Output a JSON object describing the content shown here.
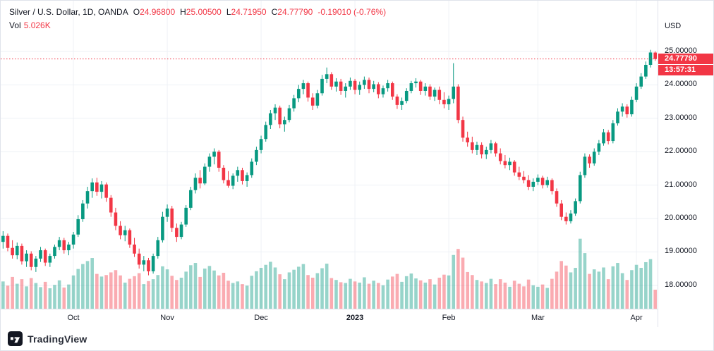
{
  "header": {
    "title": "Silver / U.S. Dollar, 1D, OANDA",
    "ohlc": [
      {
        "k": "O",
        "v": "24.96800"
      },
      {
        "k": "H",
        "v": "25.00500"
      },
      {
        "k": "L",
        "v": "24.71950"
      },
      {
        "k": "C",
        "v": "24.77790"
      }
    ],
    "change": "-0.19010 (-0.76%)",
    "vol_label": "Vol",
    "vol_value": "5.026K"
  },
  "axes": {
    "currency_label": "USD",
    "price_ticks": [
      {
        "price": 25,
        "label": "25.00000"
      },
      {
        "price": 24,
        "label": "24.00000"
      },
      {
        "price": 23,
        "label": "23.00000"
      },
      {
        "price": 22,
        "label": "22.00000"
      },
      {
        "price": 21,
        "label": "21.00000"
      },
      {
        "price": 20,
        "label": "20.00000"
      },
      {
        "price": 19,
        "label": "19.00000"
      },
      {
        "price": 18,
        "label": "18.00000"
      }
    ],
    "time_ticks": [
      {
        "index": 15,
        "label": "Oct",
        "year": false
      },
      {
        "index": 35,
        "label": "Nov",
        "year": false
      },
      {
        "index": 55,
        "label": "Dec",
        "year": false
      },
      {
        "index": 75,
        "label": "2023",
        "year": true
      },
      {
        "index": 95,
        "label": "Feb",
        "year": false
      },
      {
        "index": 114,
        "label": "Mar",
        "year": false
      },
      {
        "index": 135,
        "label": "Apr",
        "year": false
      }
    ]
  },
  "price_tag": {
    "value": "24.77790",
    "countdown": "13:57:31"
  },
  "logo": {
    "text": "TradingView"
  },
  "colors": {
    "up": "#089981",
    "down": "#f23645",
    "volume_up": "rgba(8,153,129,0.42)",
    "volume_down": "rgba(242,54,69,0.42)",
    "grid": "#eef1f6",
    "accent_red": "#f23645",
    "text": "#131722"
  },
  "chart_data": {
    "type": "candlestick+volume",
    "title": "Silver / U.S. Dollar, 1D, OANDA",
    "symbol": "Silver / U.S. Dollar",
    "interval": "1D",
    "exchange": "OANDA",
    "ylim": [
      17.3,
      26.52
    ],
    "price_gridlines": [
      18,
      19,
      20,
      21,
      22,
      23,
      24,
      25
    ],
    "volume_max": 19,
    "last": {
      "open": 24.968,
      "high": 25.005,
      "low": 24.7195,
      "close": 24.7779,
      "change": -0.1901,
      "change_pct": -0.76,
      "volume_k": 5.026
    },
    "candles_format": [
      "open",
      "high",
      "low",
      "close",
      "volume_k"
    ],
    "candles": [
      [
        19.3,
        19.62,
        19.1,
        19.48,
        7.2
      ],
      [
        19.48,
        19.55,
        19.02,
        19.12,
        6.1
      ],
      [
        19.12,
        19.35,
        18.8,
        18.9,
        8.4
      ],
      [
        18.9,
        19.28,
        18.78,
        19.18,
        6.6
      ],
      [
        19.18,
        19.25,
        18.62,
        18.72,
        7.8
      ],
      [
        18.72,
        19.05,
        18.55,
        18.95,
        5.9
      ],
      [
        18.95,
        19.02,
        18.45,
        18.55,
        8.1
      ],
      [
        18.55,
        18.88,
        18.4,
        18.8,
        6.8
      ],
      [
        18.8,
        19.15,
        18.7,
        19.05,
        5.7
      ],
      [
        19.05,
        19.1,
        18.58,
        18.68,
        7.1
      ],
      [
        18.68,
        18.95,
        18.55,
        18.88,
        5.4
      ],
      [
        18.88,
        19.22,
        18.8,
        19.15,
        6.3
      ],
      [
        19.15,
        19.45,
        19.05,
        19.35,
        7.5
      ],
      [
        19.35,
        19.42,
        18.95,
        19.05,
        5.6
      ],
      [
        19.05,
        19.3,
        18.9,
        19.22,
        6.4
      ],
      [
        19.22,
        19.6,
        19.1,
        19.52,
        8.8
      ],
      [
        19.52,
        20.1,
        19.45,
        19.98,
        10.5
      ],
      [
        19.98,
        20.55,
        19.9,
        20.45,
        11.8
      ],
      [
        20.45,
        20.95,
        20.3,
        20.82,
        12.6
      ],
      [
        20.82,
        21.2,
        20.62,
        21.08,
        13.4
      ],
      [
        21.08,
        21.22,
        20.68,
        20.8,
        9.2
      ],
      [
        20.8,
        21.12,
        20.6,
        21.02,
        8.5
      ],
      [
        21.02,
        21.08,
        20.5,
        20.62,
        8.9
      ],
      [
        20.62,
        20.7,
        20.05,
        20.18,
        9.6
      ],
      [
        20.18,
        20.32,
        19.65,
        19.78,
        10.2
      ],
      [
        19.78,
        19.92,
        19.38,
        19.5,
        8.8
      ],
      [
        19.5,
        19.78,
        19.32,
        19.65,
        6.9
      ],
      [
        19.65,
        19.7,
        19.12,
        19.22,
        7.9
      ],
      [
        19.22,
        19.42,
        18.85,
        18.95,
        8.6
      ],
      [
        18.95,
        19.1,
        18.5,
        18.62,
        9.4
      ],
      [
        18.62,
        18.88,
        18.42,
        18.75,
        6.5
      ],
      [
        18.75,
        18.82,
        18.3,
        18.42,
        7.3
      ],
      [
        18.42,
        18.95,
        18.35,
        18.88,
        7.8
      ],
      [
        18.88,
        19.45,
        18.8,
        19.35,
        8.9
      ],
      [
        19.35,
        20.2,
        19.28,
        20.05,
        11.2
      ],
      [
        20.05,
        20.42,
        19.9,
        20.3,
        10.4
      ],
      [
        20.3,
        20.38,
        19.6,
        19.72,
        8.7
      ],
      [
        19.72,
        19.85,
        19.3,
        19.45,
        7.6
      ],
      [
        19.45,
        19.9,
        19.38,
        19.82,
        8.2
      ],
      [
        19.82,
        20.4,
        19.75,
        20.32,
        9.8
      ],
      [
        20.32,
        20.95,
        20.25,
        20.85,
        11.5
      ],
      [
        20.85,
        21.35,
        20.75,
        21.22,
        12.1
      ],
      [
        21.22,
        21.45,
        20.9,
        21.05,
        8.4
      ],
      [
        21.05,
        21.65,
        21.0,
        21.55,
        10.6
      ],
      [
        21.55,
        21.95,
        21.4,
        21.85,
        11.3
      ],
      [
        21.85,
        22.1,
        21.62,
        22.0,
        10.1
      ],
      [
        22.0,
        22.05,
        21.4,
        21.52,
        8.8
      ],
      [
        21.52,
        21.6,
        21.05,
        21.15,
        9.5
      ],
      [
        21.15,
        21.42,
        20.92,
        20.98,
        7.4
      ],
      [
        20.98,
        21.35,
        20.88,
        21.28,
        6.8
      ],
      [
        21.28,
        21.55,
        21.1,
        21.45,
        7.2
      ],
      [
        21.45,
        21.52,
        21.02,
        21.12,
        6.5
      ],
      [
        21.12,
        21.38,
        20.95,
        21.3,
        6.1
      ],
      [
        21.3,
        21.8,
        21.22,
        21.7,
        8.7
      ],
      [
        21.7,
        22.15,
        21.6,
        22.05,
        9.9
      ],
      [
        22.05,
        22.48,
        21.95,
        22.38,
        10.8
      ],
      [
        22.38,
        22.9,
        22.3,
        22.8,
        11.6
      ],
      [
        22.8,
        23.25,
        22.68,
        23.15,
        12.4
      ],
      [
        23.15,
        23.42,
        22.95,
        23.32,
        10.9
      ],
      [
        23.32,
        23.38,
        22.7,
        22.82,
        9.1
      ],
      [
        22.82,
        23.05,
        22.6,
        22.95,
        7.8
      ],
      [
        22.95,
        23.4,
        22.88,
        23.3,
        9.6
      ],
      [
        23.3,
        23.7,
        23.2,
        23.6,
        10.3
      ],
      [
        23.6,
        24.0,
        23.48,
        23.88,
        11.1
      ],
      [
        23.88,
        24.15,
        23.72,
        24.05,
        11.8
      ],
      [
        24.05,
        24.1,
        23.5,
        23.62,
        8.9
      ],
      [
        23.62,
        23.75,
        23.25,
        23.38,
        8.2
      ],
      [
        23.38,
        23.85,
        23.3,
        23.75,
        9.4
      ],
      [
        23.75,
        24.3,
        23.68,
        24.18,
        10.7
      ],
      [
        24.18,
        24.52,
        24.05,
        24.32,
        11.9
      ],
      [
        24.32,
        24.38,
        23.85,
        23.95,
        8.1
      ],
      [
        23.95,
        24.2,
        23.8,
        24.1,
        7.6
      ],
      [
        24.1,
        24.18,
        23.7,
        23.82,
        7.0
      ],
      [
        23.82,
        24.05,
        23.62,
        23.95,
        6.8
      ],
      [
        23.95,
        24.22,
        23.85,
        24.12,
        7.9
      ],
      [
        24.12,
        24.18,
        23.72,
        23.85,
        7.2
      ],
      [
        23.85,
        24.1,
        23.7,
        24.0,
        6.9
      ],
      [
        24.0,
        24.25,
        23.88,
        24.15,
        8.3
      ],
      [
        24.15,
        24.22,
        23.75,
        23.88,
        6.6
      ],
      [
        23.88,
        24.12,
        23.78,
        24.02,
        7.4
      ],
      [
        24.02,
        24.08,
        23.6,
        23.72,
        6.8
      ],
      [
        23.72,
        23.98,
        23.62,
        23.9,
        6.2
      ],
      [
        23.9,
        24.15,
        23.8,
        24.05,
        7.7
      ],
      [
        24.05,
        24.1,
        23.55,
        23.65,
        8.5
      ],
      [
        23.65,
        23.72,
        23.28,
        23.4,
        9.2
      ],
      [
        23.4,
        23.62,
        23.25,
        23.52,
        7.1
      ],
      [
        23.52,
        23.9,
        23.45,
        23.82,
        8.6
      ],
      [
        23.82,
        24.12,
        23.75,
        24.05,
        9.3
      ],
      [
        24.05,
        24.2,
        23.92,
        24.1,
        8.0
      ],
      [
        24.1,
        24.15,
        23.7,
        23.82,
        7.5
      ],
      [
        23.82,
        24.05,
        23.68,
        23.95,
        6.9
      ],
      [
        23.95,
        24.02,
        23.55,
        23.65,
        7.8
      ],
      [
        23.65,
        23.92,
        23.52,
        23.85,
        6.4
      ],
      [
        23.85,
        23.95,
        23.42,
        23.55,
        8.2
      ],
      [
        23.55,
        23.78,
        23.3,
        23.42,
        9.0
      ],
      [
        23.42,
        23.68,
        23.25,
        23.58,
        8.8
      ],
      [
        23.58,
        24.65,
        23.45,
        23.95,
        14.2
      ],
      [
        23.95,
        24.02,
        22.85,
        22.95,
        15.8
      ],
      [
        22.95,
        23.05,
        22.3,
        22.42,
        13.5
      ],
      [
        22.42,
        22.6,
        22.15,
        22.28,
        9.7
      ],
      [
        22.28,
        22.45,
        21.95,
        22.05,
        8.9
      ],
      [
        22.05,
        22.3,
        21.9,
        22.2,
        7.6
      ],
      [
        22.2,
        22.28,
        21.8,
        21.92,
        7.2
      ],
      [
        21.92,
        22.15,
        21.78,
        22.05,
        6.8
      ],
      [
        22.05,
        22.35,
        21.95,
        22.25,
        7.9
      ],
      [
        22.25,
        22.3,
        21.85,
        21.95,
        6.5
      ],
      [
        21.95,
        22.1,
        21.62,
        21.72,
        7.8
      ],
      [
        21.72,
        21.9,
        21.5,
        21.6,
        6.9
      ],
      [
        21.6,
        21.82,
        21.45,
        21.7,
        5.8
      ],
      [
        21.7,
        21.75,
        21.28,
        21.38,
        7.4
      ],
      [
        21.38,
        21.55,
        21.15,
        21.25,
        6.6
      ],
      [
        21.25,
        21.42,
        21.05,
        21.15,
        5.9
      ],
      [
        21.15,
        21.3,
        20.85,
        20.95,
        7.7
      ],
      [
        20.95,
        21.2,
        20.82,
        21.1,
        6.2
      ],
      [
        21.1,
        21.32,
        21.0,
        21.22,
        5.8
      ],
      [
        21.22,
        21.28,
        20.9,
        21.0,
        6.4
      ],
      [
        21.0,
        21.25,
        20.92,
        21.15,
        5.5
      ],
      [
        21.15,
        21.2,
        20.72,
        20.82,
        7.9
      ],
      [
        20.82,
        20.9,
        20.35,
        20.45,
        9.8
      ],
      [
        20.45,
        20.55,
        19.95,
        20.05,
        12.6
      ],
      [
        20.05,
        20.18,
        19.82,
        19.92,
        11.4
      ],
      [
        19.92,
        20.25,
        19.85,
        20.15,
        9.6
      ],
      [
        20.15,
        20.6,
        20.08,
        20.52,
        10.8
      ],
      [
        20.52,
        21.4,
        20.45,
        21.3,
        18.5
      ],
      [
        21.3,
        21.95,
        21.22,
        21.85,
        14.7
      ],
      [
        21.85,
        21.92,
        21.52,
        21.65,
        9.2
      ],
      [
        21.65,
        22.1,
        21.58,
        22.0,
        10.4
      ],
      [
        22.0,
        22.35,
        21.9,
        22.25,
        9.8
      ],
      [
        22.25,
        22.68,
        22.18,
        22.58,
        10.9
      ],
      [
        22.58,
        22.65,
        22.22,
        22.32,
        7.8
      ],
      [
        22.32,
        22.95,
        22.25,
        22.85,
        11.2
      ],
      [
        22.85,
        23.3,
        22.78,
        23.2,
        12.1
      ],
      [
        23.2,
        23.45,
        23.05,
        23.35,
        9.4
      ],
      [
        23.35,
        23.42,
        23.02,
        23.12,
        7.6
      ],
      [
        23.12,
        23.65,
        23.05,
        23.55,
        10.2
      ],
      [
        23.55,
        24.05,
        23.48,
        23.95,
        11.6
      ],
      [
        23.95,
        24.35,
        23.88,
        24.25,
        10.8
      ],
      [
        24.25,
        24.7,
        24.18,
        24.6,
        12.3
      ],
      [
        24.6,
        25.05,
        24.52,
        24.97,
        13.1
      ],
      [
        24.968,
        25.005,
        24.7195,
        24.7779,
        5.026
      ]
    ]
  }
}
